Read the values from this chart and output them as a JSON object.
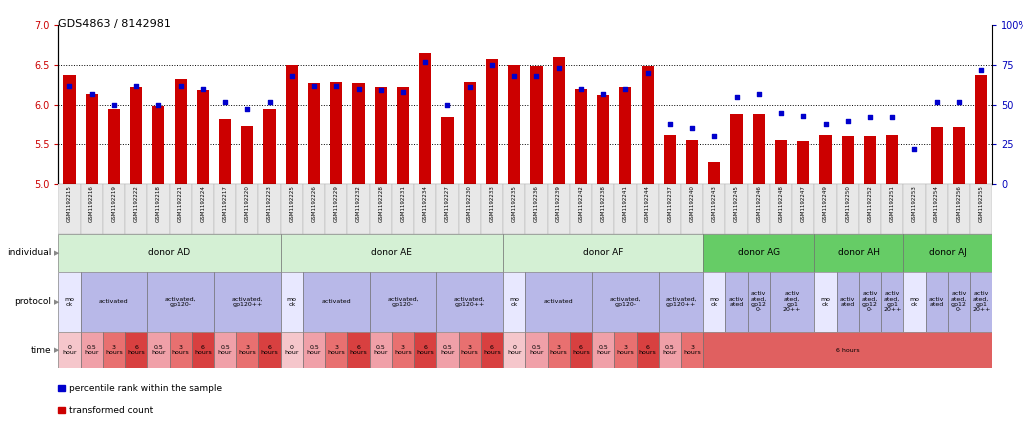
{
  "title": "GDS4863 / 8142981",
  "samples": [
    "GSM1192215",
    "GSM1192216",
    "GSM1192219",
    "GSM1192222",
    "GSM1192218",
    "GSM1192221",
    "GSM1192224",
    "GSM1192217",
    "GSM1192220",
    "GSM1192223",
    "GSM1192225",
    "GSM1192226",
    "GSM1192229",
    "GSM1192232",
    "GSM1192228",
    "GSM1192231",
    "GSM1192234",
    "GSM1192227",
    "GSM1192230",
    "GSM1192233",
    "GSM1192235",
    "GSM1192236",
    "GSM1192239",
    "GSM1192242",
    "GSM1192238",
    "GSM1192241",
    "GSM1192244",
    "GSM1192237",
    "GSM1192240",
    "GSM1192243",
    "GSM1192245",
    "GSM1192246",
    "GSM1192248",
    "GSM1192247",
    "GSM1192249",
    "GSM1192250",
    "GSM1192252",
    "GSM1192251",
    "GSM1192253",
    "GSM1192254",
    "GSM1192256",
    "GSM1192255"
  ],
  "bar_values": [
    6.38,
    6.13,
    5.95,
    6.22,
    5.98,
    6.32,
    6.18,
    5.82,
    5.73,
    5.95,
    6.5,
    6.27,
    6.28,
    6.27,
    6.22,
    6.22,
    6.65,
    5.85,
    6.29,
    6.57,
    6.5,
    6.49,
    6.6,
    6.2,
    6.12,
    6.22,
    6.49,
    5.62,
    5.56,
    5.28,
    5.88,
    5.88,
    5.55,
    5.54,
    5.62,
    5.61,
    5.61,
    5.62,
    5.0,
    5.72,
    5.72,
    6.38
  ],
  "dot_values": [
    62,
    57,
    50,
    62,
    50,
    62,
    60,
    52,
    47,
    52,
    68,
    62,
    62,
    60,
    59,
    58,
    77,
    50,
    61,
    75,
    68,
    68,
    73,
    60,
    57,
    60,
    70,
    38,
    35,
    30,
    55,
    57,
    45,
    43,
    38,
    40,
    42,
    42,
    22,
    52,
    52,
    72
  ],
  "ylim_left": [
    5.0,
    7.0
  ],
  "ylim_right": [
    0,
    100
  ],
  "yticks_left": [
    5.0,
    5.5,
    6.0,
    6.5,
    7.0
  ],
  "yticks_right": [
    0,
    25,
    50,
    75,
    100
  ],
  "hlines": [
    5.5,
    6.0,
    6.5
  ],
  "bar_color": "#cc0000",
  "dot_color": "#0000cc",
  "bar_bottom": 5.0,
  "donor_groups": [
    {
      "label": "donor AD",
      "start": 0,
      "end": 9,
      "color": "#d4f0d4"
    },
    {
      "label": "donor AE",
      "start": 10,
      "end": 19,
      "color": "#d4f0d4"
    },
    {
      "label": "donor AF",
      "start": 20,
      "end": 28,
      "color": "#d4f0d4"
    },
    {
      "label": "donor AG",
      "start": 29,
      "end": 33,
      "color": "#66cc66"
    },
    {
      "label": "donor AH",
      "start": 34,
      "end": 37,
      "color": "#66cc66"
    },
    {
      "label": "donor AJ",
      "start": 38,
      "end": 41,
      "color": "#66cc66"
    }
  ],
  "protocol_groups": [
    {
      "label": "mo\nck",
      "start": 0,
      "end": 0,
      "color": "#e8e8ff"
    },
    {
      "label": "activated",
      "start": 1,
      "end": 3,
      "color": "#b8b8e8"
    },
    {
      "label": "activated,\ngp120-",
      "start": 4,
      "end": 6,
      "color": "#b8b8e8"
    },
    {
      "label": "activated,\ngp120++",
      "start": 7,
      "end": 9,
      "color": "#b8b8e8"
    },
    {
      "label": "mo\nck",
      "start": 10,
      "end": 10,
      "color": "#e8e8ff"
    },
    {
      "label": "activated",
      "start": 11,
      "end": 13,
      "color": "#b8b8e8"
    },
    {
      "label": "activated,\ngp120-",
      "start": 14,
      "end": 16,
      "color": "#b8b8e8"
    },
    {
      "label": "activated,\ngp120++",
      "start": 17,
      "end": 19,
      "color": "#b8b8e8"
    },
    {
      "label": "mo\nck",
      "start": 20,
      "end": 20,
      "color": "#e8e8ff"
    },
    {
      "label": "activated",
      "start": 21,
      "end": 23,
      "color": "#b8b8e8"
    },
    {
      "label": "activated,\ngp120-",
      "start": 24,
      "end": 26,
      "color": "#b8b8e8"
    },
    {
      "label": "activated,\ngp120++",
      "start": 27,
      "end": 28,
      "color": "#b8b8e8"
    },
    {
      "label": "mo\nck",
      "start": 29,
      "end": 29,
      "color": "#e8e8ff"
    },
    {
      "label": "activ\nated",
      "start": 30,
      "end": 30,
      "color": "#b8b8e8"
    },
    {
      "label": "activ\nated,\ngp12\n0-",
      "start": 31,
      "end": 31,
      "color": "#b8b8e8"
    },
    {
      "label": "activ\nated,\ngp1\n20++",
      "start": 32,
      "end": 33,
      "color": "#b8b8e8"
    },
    {
      "label": "mo\nck",
      "start": 34,
      "end": 34,
      "color": "#e8e8ff"
    },
    {
      "label": "activ\nated",
      "start": 35,
      "end": 35,
      "color": "#b8b8e8"
    },
    {
      "label": "activ\nated,\ngp12\n0-",
      "start": 36,
      "end": 36,
      "color": "#b8b8e8"
    },
    {
      "label": "activ\nated,\ngp1\n20++",
      "start": 37,
      "end": 37,
      "color": "#b8b8e8"
    },
    {
      "label": "mo\nck",
      "start": 38,
      "end": 38,
      "color": "#e8e8ff"
    },
    {
      "label": "activ\nated",
      "start": 39,
      "end": 39,
      "color": "#b8b8e8"
    },
    {
      "label": "activ\nated,\ngp12\n0-",
      "start": 40,
      "end": 40,
      "color": "#b8b8e8"
    },
    {
      "label": "activ\nated,\ngp1\n20++",
      "start": 41,
      "end": 41,
      "color": "#b8b8e8"
    }
  ],
  "time_groups": [
    {
      "label": "0\nhour",
      "start": 0,
      "end": 0,
      "color": "#f5c6cb"
    },
    {
      "label": "0.5\nhour",
      "start": 1,
      "end": 1,
      "color": "#f0a0a8"
    },
    {
      "label": "3\nhours",
      "start": 2,
      "end": 2,
      "color": "#e87070"
    },
    {
      "label": "6\nhours",
      "start": 3,
      "end": 3,
      "color": "#d84040"
    },
    {
      "label": "0.5\nhour",
      "start": 4,
      "end": 4,
      "color": "#f0a0a8"
    },
    {
      "label": "3\nhours",
      "start": 5,
      "end": 5,
      "color": "#e87070"
    },
    {
      "label": "6\nhours",
      "start": 6,
      "end": 6,
      "color": "#d84040"
    },
    {
      "label": "0.5\nhour",
      "start": 7,
      "end": 7,
      "color": "#f0a0a8"
    },
    {
      "label": "3\nhours",
      "start": 8,
      "end": 8,
      "color": "#e87070"
    },
    {
      "label": "6\nhours",
      "start": 9,
      "end": 9,
      "color": "#d84040"
    },
    {
      "label": "0\nhour",
      "start": 10,
      "end": 10,
      "color": "#f5c6cb"
    },
    {
      "label": "0.5\nhour",
      "start": 11,
      "end": 11,
      "color": "#f0a0a8"
    },
    {
      "label": "3\nhours",
      "start": 12,
      "end": 12,
      "color": "#e87070"
    },
    {
      "label": "6\nhours",
      "start": 13,
      "end": 13,
      "color": "#d84040"
    },
    {
      "label": "0.5\nhour",
      "start": 14,
      "end": 14,
      "color": "#f0a0a8"
    },
    {
      "label": "3\nhours",
      "start": 15,
      "end": 15,
      "color": "#e87070"
    },
    {
      "label": "6\nhours",
      "start": 16,
      "end": 16,
      "color": "#d84040"
    },
    {
      "label": "0.5\nhour",
      "start": 17,
      "end": 17,
      "color": "#f0a0a8"
    },
    {
      "label": "3\nhours",
      "start": 18,
      "end": 18,
      "color": "#e87070"
    },
    {
      "label": "6\nhours",
      "start": 19,
      "end": 19,
      "color": "#d84040"
    },
    {
      "label": "0\nhour",
      "start": 20,
      "end": 20,
      "color": "#f5c6cb"
    },
    {
      "label": "0.5\nhour",
      "start": 21,
      "end": 21,
      "color": "#f0a0a8"
    },
    {
      "label": "3\nhours",
      "start": 22,
      "end": 22,
      "color": "#e87070"
    },
    {
      "label": "6\nhours",
      "start": 23,
      "end": 23,
      "color": "#d84040"
    },
    {
      "label": "0.5\nhour",
      "start": 24,
      "end": 24,
      "color": "#f0a0a8"
    },
    {
      "label": "3\nhours",
      "start": 25,
      "end": 25,
      "color": "#e87070"
    },
    {
      "label": "6\nhours",
      "start": 26,
      "end": 26,
      "color": "#d84040"
    },
    {
      "label": "0.5\nhour",
      "start": 27,
      "end": 27,
      "color": "#f0a0a8"
    },
    {
      "label": "3\nhours",
      "start": 28,
      "end": 28,
      "color": "#e87070"
    },
    {
      "label": "6 hours",
      "start": 29,
      "end": 41,
      "color": "#e06060"
    }
  ],
  "legend_items": [
    {
      "label": "transformed count",
      "color": "#cc0000"
    },
    {
      "label": "percentile rank within the sample",
      "color": "#0000cc"
    }
  ],
  "label_color_left": "#cc0000",
  "label_color_right": "#0000bb"
}
